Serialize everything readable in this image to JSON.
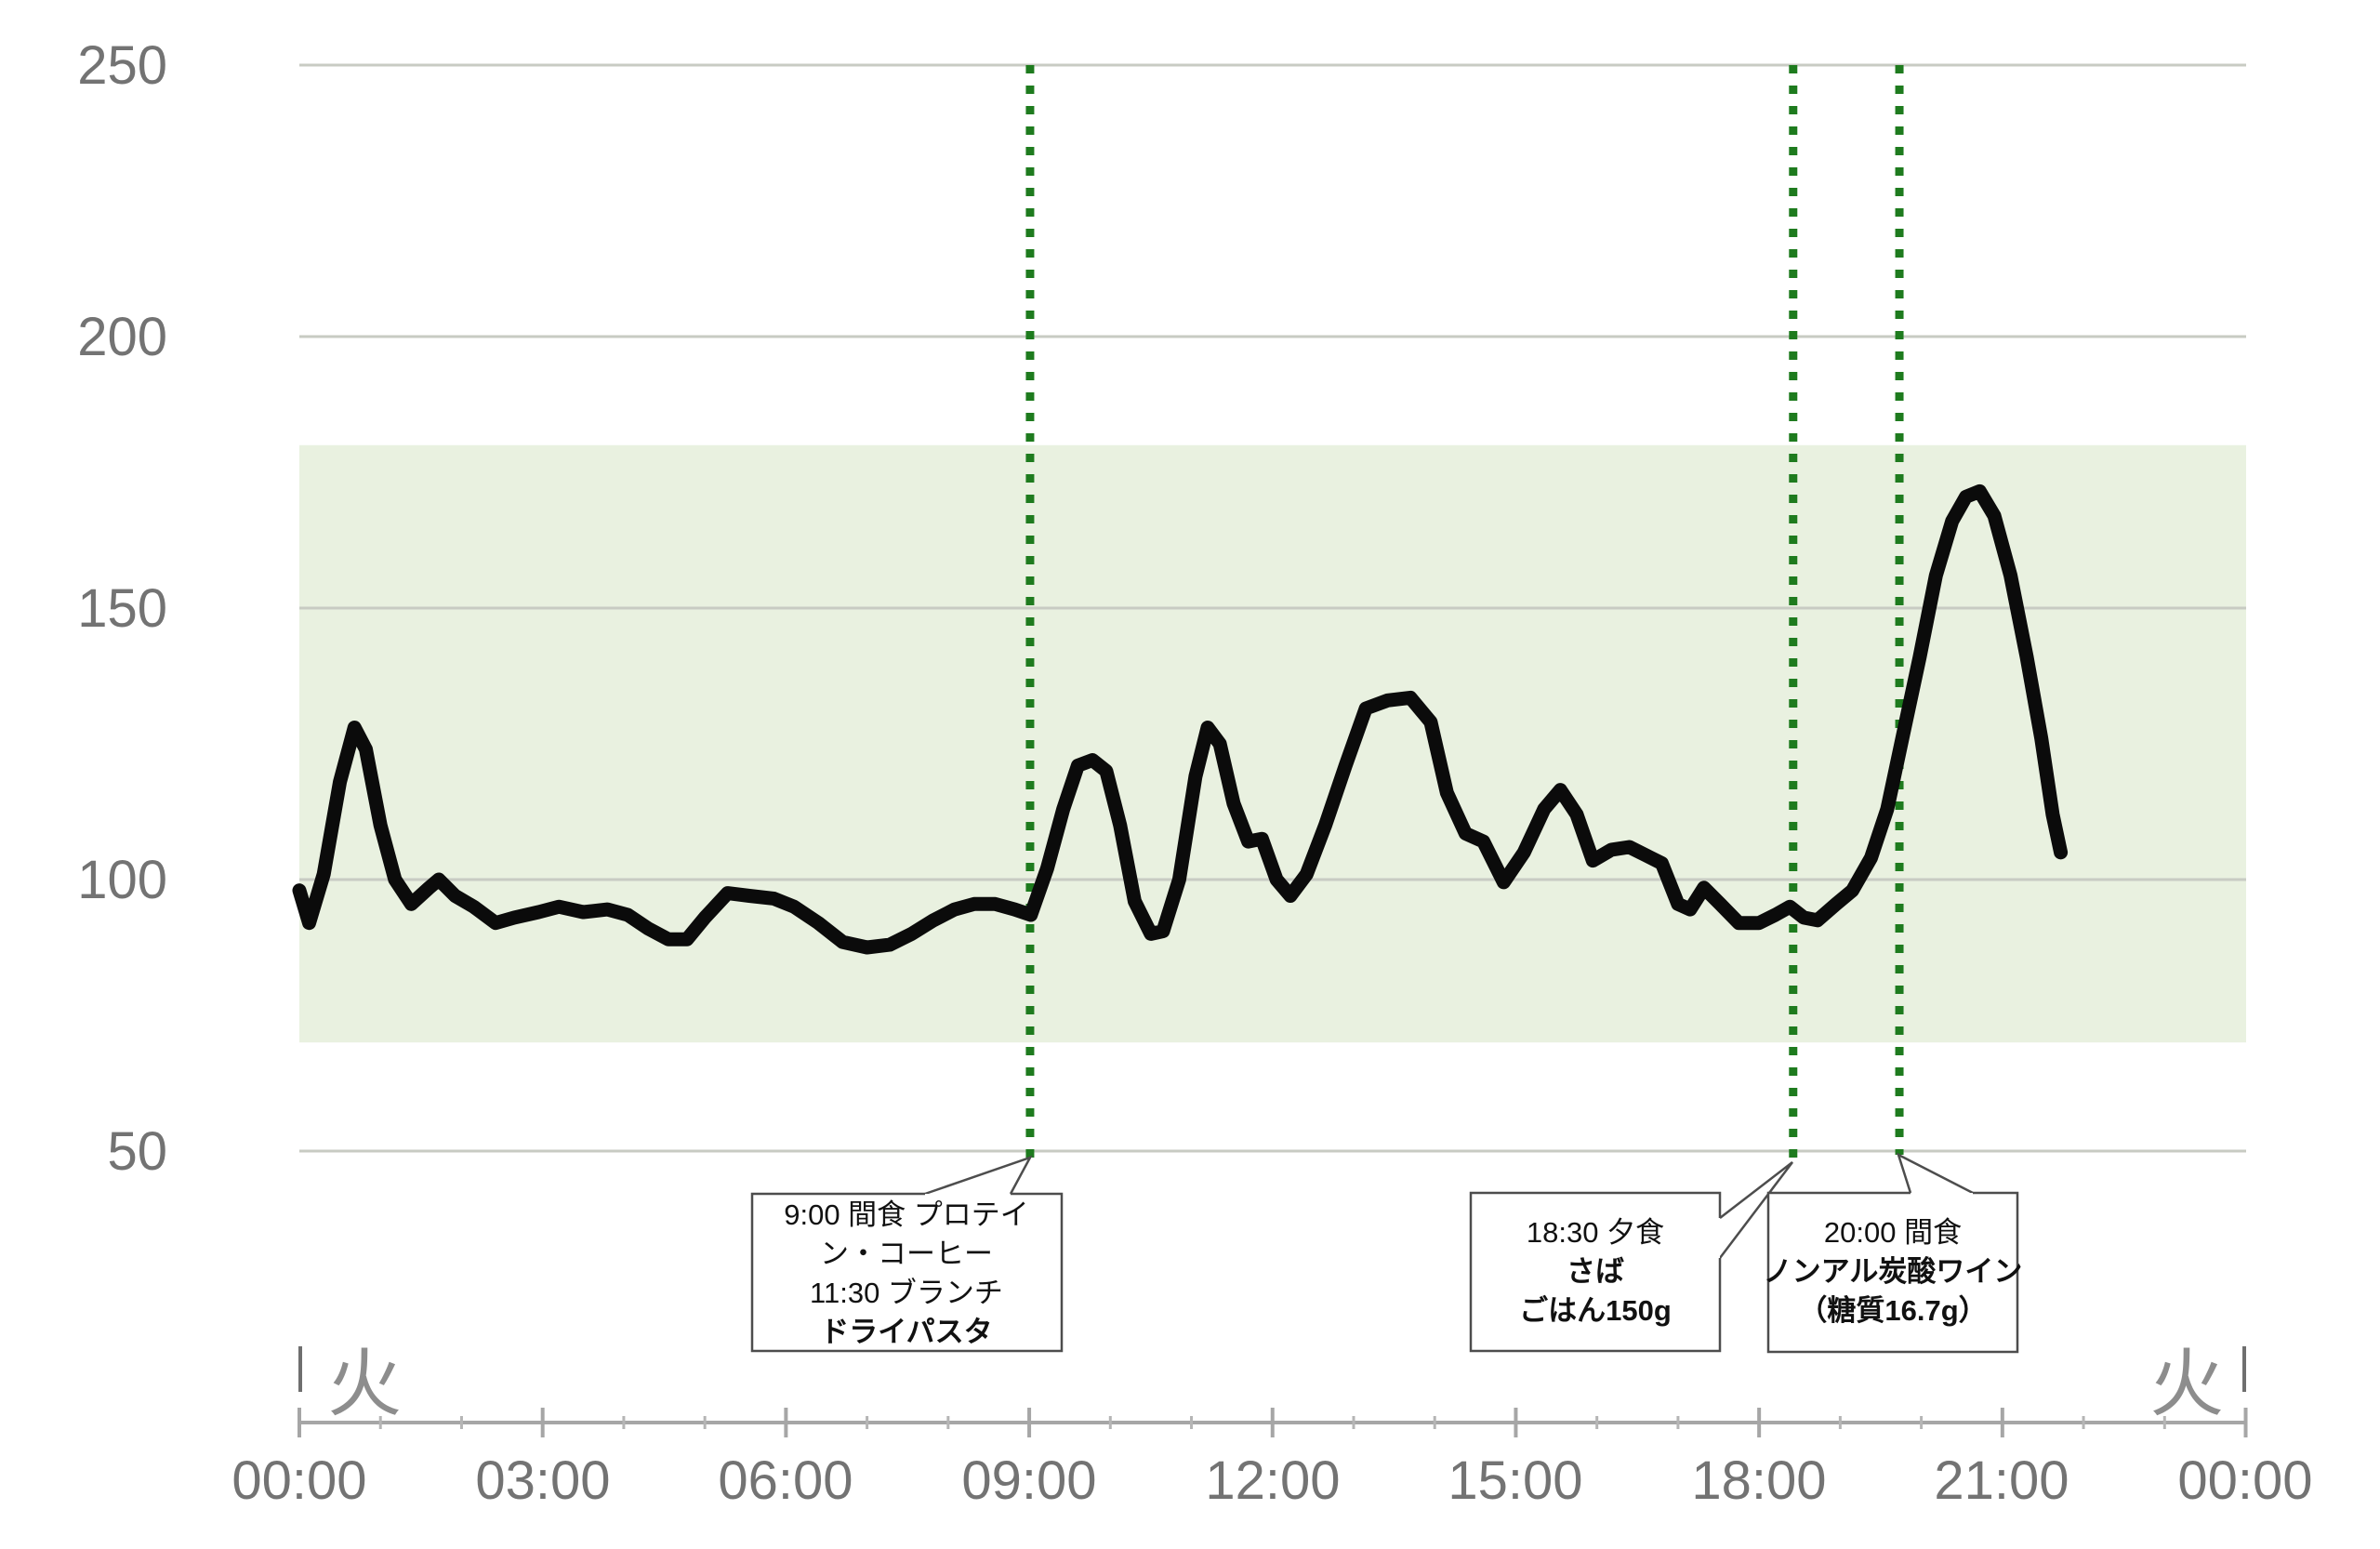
{
  "chart_data": {
    "type": "line",
    "x_unit": "hours",
    "x_ticks": [
      "00:00",
      "03:00",
      "06:00",
      "09:00",
      "12:00",
      "15:00",
      "18:00",
      "21:00",
      "00:00"
    ],
    "y_tick_labels": [
      "250",
      "200",
      "150",
      "100",
      "50"
    ],
    "y_ticks": [
      250,
      200,
      150,
      100,
      50
    ],
    "ylim_shown": [
      50,
      250
    ],
    "grid": true,
    "target_band": {
      "low": 70,
      "high": 180
    },
    "day_label_left": "火",
    "day_label_right": "火",
    "series": [
      {
        "name": "glucose",
        "points": [
          [
            0,
            98
          ],
          [
            0.12,
            92
          ],
          [
            0.3,
            101
          ],
          [
            0.5,
            118
          ],
          [
            0.68,
            128
          ],
          [
            0.82,
            124
          ],
          [
            1.0,
            110
          ],
          [
            1.18,
            100
          ],
          [
            1.38,
            95.5
          ],
          [
            1.6,
            98.5
          ],
          [
            1.72,
            100
          ],
          [
            1.92,
            97
          ],
          [
            2.15,
            95
          ],
          [
            2.42,
            92
          ],
          [
            2.65,
            93
          ],
          [
            2.95,
            94
          ],
          [
            3.2,
            95
          ],
          [
            3.5,
            94
          ],
          [
            3.8,
            94.5
          ],
          [
            4.05,
            93.5
          ],
          [
            4.3,
            91
          ],
          [
            4.55,
            89
          ],
          [
            4.78,
            89
          ],
          [
            5.0,
            93
          ],
          [
            5.28,
            97.5
          ],
          [
            5.55,
            97
          ],
          [
            5.85,
            96.5
          ],
          [
            6.1,
            95
          ],
          [
            6.4,
            92
          ],
          [
            6.7,
            88.5
          ],
          [
            7.0,
            87.5
          ],
          [
            7.28,
            88
          ],
          [
            7.55,
            90
          ],
          [
            7.82,
            92.5
          ],
          [
            8.08,
            94.5
          ],
          [
            8.32,
            95.5
          ],
          [
            8.58,
            95.5
          ],
          [
            8.82,
            94.5
          ],
          [
            9.02,
            93.5
          ],
          [
            9.22,
            102
          ],
          [
            9.42,
            113
          ],
          [
            9.6,
            121
          ],
          [
            9.78,
            122
          ],
          [
            9.95,
            120
          ],
          [
            10.12,
            110
          ],
          [
            10.3,
            96
          ],
          [
            10.5,
            90
          ],
          [
            10.65,
            90.5
          ],
          [
            10.85,
            100
          ],
          [
            11.05,
            119
          ],
          [
            11.2,
            128
          ],
          [
            11.35,
            125
          ],
          [
            11.52,
            114
          ],
          [
            11.7,
            107
          ],
          [
            11.87,
            107.5
          ],
          [
            12.05,
            100
          ],
          [
            12.22,
            97
          ],
          [
            12.42,
            101
          ],
          [
            12.65,
            110
          ],
          [
            12.9,
            121
          ],
          [
            13.15,
            131.5
          ],
          [
            13.42,
            133
          ],
          [
            13.7,
            133.5
          ],
          [
            13.95,
            129
          ],
          [
            14.15,
            116
          ],
          [
            14.38,
            108.5
          ],
          [
            14.6,
            107
          ],
          [
            14.85,
            99.5
          ],
          [
            15.1,
            105
          ],
          [
            15.35,
            113
          ],
          [
            15.55,
            116.5
          ],
          [
            15.75,
            112
          ],
          [
            15.95,
            103.5
          ],
          [
            16.18,
            105.5
          ],
          [
            16.4,
            106
          ],
          [
            16.6,
            104.5
          ],
          [
            16.8,
            103
          ],
          [
            17.0,
            95.5
          ],
          [
            17.15,
            94.5
          ],
          [
            17.32,
            98.5
          ],
          [
            17.52,
            95.5
          ],
          [
            17.75,
            92
          ],
          [
            18.0,
            92
          ],
          [
            18.2,
            93.5
          ],
          [
            18.38,
            95
          ],
          [
            18.55,
            93
          ],
          [
            18.72,
            92.5
          ],
          [
            18.95,
            95.5
          ],
          [
            19.15,
            98
          ],
          [
            19.38,
            104
          ],
          [
            19.58,
            113
          ],
          [
            19.78,
            127
          ],
          [
            19.98,
            141
          ],
          [
            20.18,
            156
          ],
          [
            20.38,
            166
          ],
          [
            20.55,
            170.5
          ],
          [
            20.72,
            171.5
          ],
          [
            20.9,
            167
          ],
          [
            21.1,
            156
          ],
          [
            21.3,
            141
          ],
          [
            21.48,
            126
          ],
          [
            21.62,
            112
          ],
          [
            21.72,
            105
          ]
        ]
      }
    ],
    "event_lines": [
      {
        "label": "9:00",
        "x_hours": 9.01
      },
      {
        "label": "18:30",
        "x_hours": 18.42
      },
      {
        "label": "20:00",
        "x_hours": 19.73
      }
    ]
  },
  "annotations": [
    {
      "lines": [
        "9:00 間食 プロテイ",
        "ン・コーヒー",
        "11:30 ブランチ",
        "ドライパスタ"
      ]
    },
    {
      "lines": [
        "18:30 夕食",
        "さば",
        "ごはん150g"
      ]
    },
    {
      "lines": [
        "20:00 間食",
        "ノンアル炭酸ワイン",
        "（糖質16.7g）"
      ]
    }
  ],
  "colors": {
    "target_band": "#e9f1e0",
    "gridline": "#c8cbc3",
    "glucose_line": "#0b0b0b",
    "event_line": "#1e7b1e",
    "axis": "#a6a6a6",
    "tick_label": "#737373",
    "day_label": "#8d8d8d",
    "annotation_border": "#4d4d4d"
  }
}
